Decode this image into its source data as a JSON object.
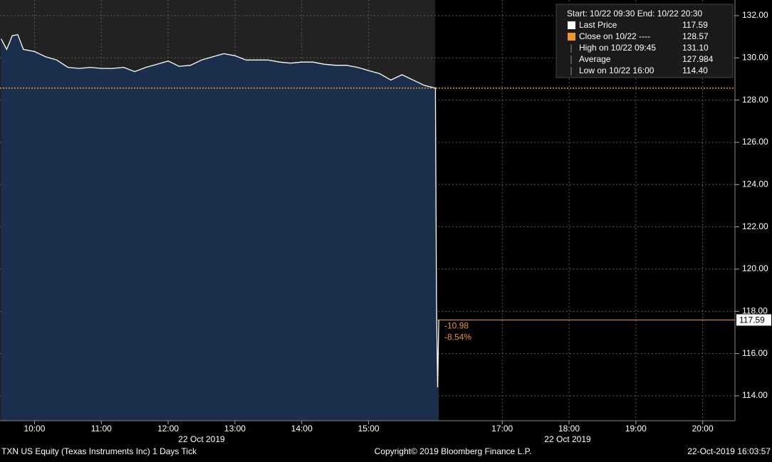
{
  "chart_data": {
    "type": "area",
    "x": [
      "09:30",
      "09:35",
      "09:40",
      "09:45",
      "09:50",
      "10:00",
      "10:10",
      "10:20",
      "10:30",
      "10:40",
      "10:50",
      "11:00",
      "11:10",
      "11:20",
      "11:30",
      "11:40",
      "11:50",
      "12:00",
      "12:10",
      "12:20",
      "12:30",
      "12:40",
      "12:50",
      "13:00",
      "13:10",
      "13:20",
      "13:30",
      "13:40",
      "13:50",
      "14:00",
      "14:10",
      "14:20",
      "14:30",
      "14:40",
      "14:50",
      "15:00",
      "15:10",
      "15:20",
      "15:30",
      "15:40",
      "15:50",
      "16:00",
      "16:01",
      "16:02",
      "16:03"
    ],
    "series": [
      {
        "name": "Last Price",
        "color": "#ffffff",
        "fill": "#1b2f4d",
        "values": [
          130.9,
          130.4,
          131.05,
          131.1,
          130.4,
          130.3,
          130.05,
          129.9,
          129.55,
          129.5,
          129.55,
          129.5,
          129.5,
          129.55,
          129.35,
          129.55,
          129.7,
          129.85,
          129.6,
          129.65,
          129.9,
          130.05,
          130.2,
          130.1,
          129.9,
          129.9,
          129.9,
          129.8,
          129.75,
          129.8,
          129.8,
          129.7,
          129.65,
          129.65,
          129.55,
          129.4,
          129.25,
          128.95,
          129.2,
          128.95,
          128.7,
          128.57,
          118.4,
          114.4,
          117.59
        ]
      }
    ],
    "xlim": [
      "09:29",
      "20:29"
    ],
    "xticks": [
      "10:00",
      "11:00",
      "12:00",
      "13:00",
      "14:00",
      "15:00",
      "17:00",
      "18:00",
      "19:00",
      "20:00"
    ],
    "date_labels": [
      "22 Oct 2019",
      "22 Oct 2019"
    ],
    "ylim": [
      112.82,
      132.74
    ],
    "yticks": [
      {
        "value": 114,
        "label": "114.00"
      },
      {
        "value": 116,
        "label": "116.00"
      },
      {
        "value": 118,
        "label": "118.00"
      },
      {
        "value": 120,
        "label": "120.00"
      },
      {
        "value": 122,
        "label": "122.00"
      },
      {
        "value": 124,
        "label": "124.00"
      },
      {
        "value": 126,
        "label": "126.00"
      },
      {
        "value": 128,
        "label": "128.00"
      },
      {
        "value": 130,
        "label": "130.00"
      },
      {
        "value": 132,
        "label": "132.00"
      }
    ],
    "grid": true,
    "legend": {
      "header": "Start: 10/22 09:30 End: 10/22 20:30",
      "items": [
        {
          "label": "Last Price",
          "value": 117.59,
          "color": "#ffffff"
        },
        {
          "label": "Close on 10/22 ----",
          "value": 128.57,
          "color": "#f0932b"
        },
        {
          "label": "High on 10/22 09:45",
          "value": 131.1,
          "value_label": "131.10"
        },
        {
          "label": "Average",
          "value": 127.984
        },
        {
          "label": "Low on 10/22 16:00",
          "value": 114.4,
          "value_label": "114.40"
        }
      ]
    },
    "annotations": [
      {
        "value": -10.98
      },
      {
        "value": -8.54,
        "label": "-8.54%"
      }
    ],
    "footer": {
      "left": "TXN US Equity (Texas Instruments Inc) 1 Days  Tick",
      "center": "Copyright© 2019 Bloomberg Finance L.P.",
      "right": "22-Oct-2019 16:03:57"
    }
  }
}
